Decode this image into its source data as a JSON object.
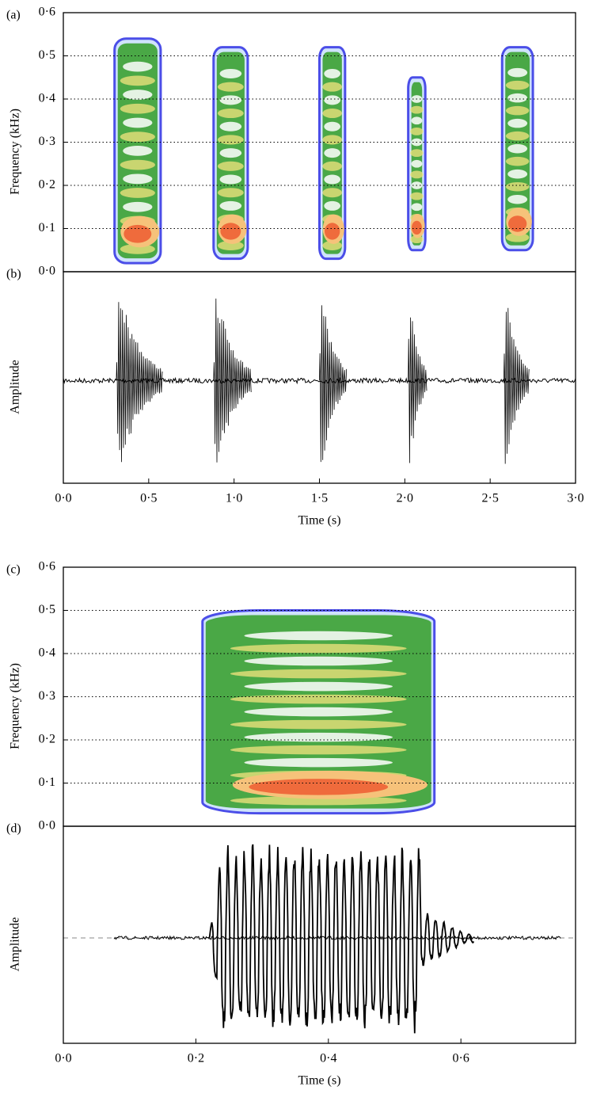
{
  "chart_data": [
    {
      "type": "spectrogram",
      "panel_label": "(a)",
      "y_label": "Frequency (kHz)",
      "xlim": [
        0,
        3
      ],
      "ylim": [
        0,
        0.6
      ],
      "yticks": [
        {
          "value": 0,
          "label": "0·0"
        },
        {
          "value": 0.1,
          "label": "0·1"
        },
        {
          "value": 0.2,
          "label": "0·2"
        },
        {
          "value": 0.3,
          "label": "0·3"
        },
        {
          "value": 0.4,
          "label": "0·4"
        },
        {
          "value": 0.5,
          "label": "0·5"
        },
        {
          "value": 0.6,
          "label": "0·6"
        }
      ],
      "grid": true,
      "calls": [
        {
          "start": 0.3,
          "end": 0.57,
          "low": 0.02,
          "high": 0.54
        },
        {
          "start": 0.88,
          "end": 1.08,
          "low": 0.03,
          "high": 0.52
        },
        {
          "start": 1.5,
          "end": 1.65,
          "low": 0.03,
          "high": 0.52
        },
        {
          "start": 2.02,
          "end": 2.12,
          "low": 0.05,
          "high": 0.45
        },
        {
          "start": 2.57,
          "end": 2.75,
          "low": 0.05,
          "high": 0.52
        }
      ]
    },
    {
      "type": "waveform",
      "panel_label": "(b)",
      "y_label": "Amplitude",
      "x_label": "Time (s)",
      "xlim": [
        0,
        3
      ],
      "xticks": [
        {
          "value": 0,
          "label": "0·0"
        },
        {
          "value": 0.5,
          "label": "0·5"
        },
        {
          "value": 1,
          "label": "1·0"
        },
        {
          "value": 1.5,
          "label": "1·5"
        },
        {
          "value": 2,
          "label": "2·0"
        },
        {
          "value": 2.5,
          "label": "2·5"
        },
        {
          "value": 3,
          "label": "3·0"
        }
      ],
      "bursts": [
        {
          "start": 0.31,
          "end": 0.58
        },
        {
          "start": 0.88,
          "end": 1.1
        },
        {
          "start": 1.5,
          "end": 1.66
        },
        {
          "start": 2.02,
          "end": 2.13
        },
        {
          "start": 2.58,
          "end": 2.73
        }
      ]
    },
    {
      "type": "spectrogram",
      "panel_label": "(c)",
      "y_label": "Frequency (kHz)",
      "xlim": [
        0,
        0.773
      ],
      "ylim": [
        0,
        0.6
      ],
      "yticks": [
        {
          "value": 0,
          "label": "0·0"
        },
        {
          "value": 0.1,
          "label": "0·1"
        },
        {
          "value": 0.2,
          "label": "0·2"
        },
        {
          "value": 0.3,
          "label": "0·3"
        },
        {
          "value": 0.4,
          "label": "0·4"
        },
        {
          "value": 0.5,
          "label": "0·5"
        },
        {
          "value": 0.6,
          "label": "0·6"
        }
      ],
      "grid": true,
      "calls": [
        {
          "start": 0.21,
          "end": 0.56,
          "low": 0.03,
          "high": 0.5
        }
      ]
    },
    {
      "type": "waveform",
      "panel_label": "(d)",
      "y_label": "Amplitude",
      "x_label": "Time (s)",
      "xlim": [
        0,
        0.773
      ],
      "xticks": [
        {
          "value": 0,
          "label": "0·0"
        },
        {
          "value": 0.2,
          "label": "0·2"
        },
        {
          "value": 0.4,
          "label": "0·4"
        },
        {
          "value": 0.6,
          "label": "0·6"
        }
      ],
      "bursts": [
        {
          "start": 0.22,
          "end": 0.62
        }
      ]
    }
  ]
}
